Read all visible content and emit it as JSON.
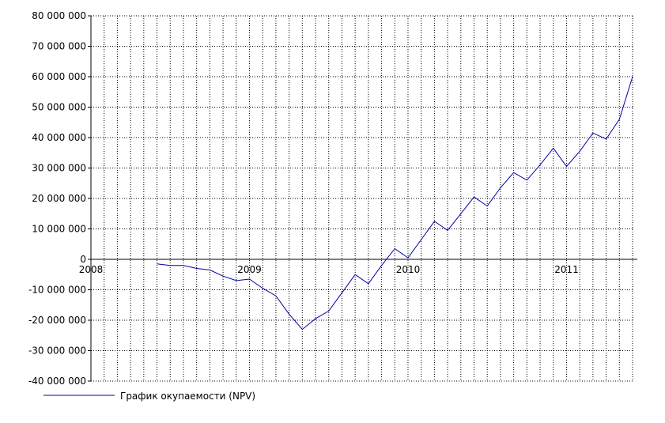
{
  "chart_data": {
    "type": "line",
    "x_ticks": [
      "2008",
      "2009",
      "2010",
      "2011"
    ],
    "y_ticks": [
      "80 000 000",
      "70 000 000",
      "60 000 000",
      "50 000 000",
      "40 000 000",
      "30 000 000",
      "20 000 000",
      "10 000 000",
      "0",
      "-10 000 000",
      "-20 000 000",
      "-30 000 000",
      "-40 000 000"
    ],
    "ylim": [
      -40000000,
      80000000
    ],
    "xlim": [
      "2008-01",
      "2011-06"
    ],
    "grid": true,
    "legend_position": "bottom-left",
    "colors": {
      "series": "#0000a8",
      "grid": "#000000",
      "axis": "#000000"
    },
    "series": [
      {
        "name": "График окупаемости (NPV)",
        "x": [
          "2008-06",
          "2008-07",
          "2008-08",
          "2008-09",
          "2008-10",
          "2008-11",
          "2008-12",
          "2009-01",
          "2009-02",
          "2009-03",
          "2009-04",
          "2009-05",
          "2009-06",
          "2009-07",
          "2009-08",
          "2009-09",
          "2009-10",
          "2009-11",
          "2009-12",
          "2010-01",
          "2010-02",
          "2010-03",
          "2010-04",
          "2010-05",
          "2010-06",
          "2010-07",
          "2010-08",
          "2010-09",
          "2010-10",
          "2010-11",
          "2010-12",
          "2011-01",
          "2011-02",
          "2011-03",
          "2011-04",
          "2011-05",
          "2011-06"
        ],
        "values": [
          -1500000,
          -2000000,
          -2000000,
          -3000000,
          -3500000,
          -5500000,
          -7000000,
          -6500000,
          -9500000,
          -12000000,
          -18000000,
          -23000000,
          -19500000,
          -17000000,
          -11000000,
          -5000000,
          -8000000,
          -2000000,
          3500000,
          500000,
          6500000,
          12500000,
          9500000,
          15000000,
          20500000,
          17500000,
          23500000,
          28500000,
          26000000,
          31000000,
          36500000,
          30500000,
          35500000,
          41500000,
          39500000,
          46000000,
          60000000
        ]
      }
    ]
  }
}
